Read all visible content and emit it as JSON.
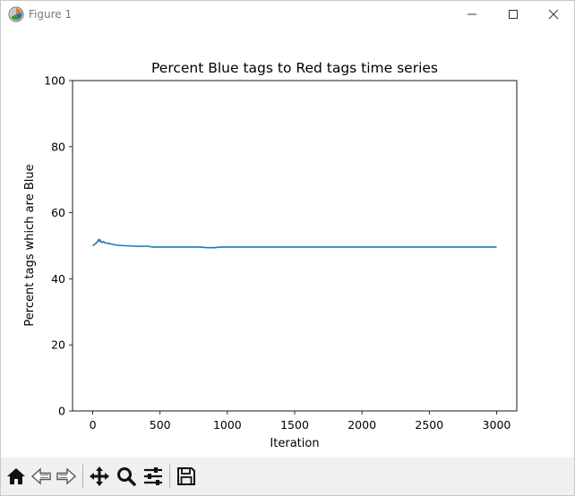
{
  "window": {
    "title": "Figure 1",
    "icons": {
      "app": "matplotlib-figure-icon",
      "minimize": "minimize-icon",
      "maximize": "maximize-icon",
      "close": "close-icon"
    }
  },
  "toolbar": {
    "buttons": [
      {
        "name": "home-button",
        "icon": "home-icon"
      },
      {
        "name": "back-button",
        "icon": "arrow-left-icon"
      },
      {
        "name": "forward-button",
        "icon": "arrow-right-icon"
      },
      {
        "name": "pan-button",
        "icon": "move-icon"
      },
      {
        "name": "zoom-button",
        "icon": "magnifier-icon"
      },
      {
        "name": "configure-subplots-button",
        "icon": "sliders-icon"
      },
      {
        "name": "save-button",
        "icon": "floppy-disk-icon"
      }
    ]
  },
  "chart_data": {
    "type": "line",
    "title": "Percent Blue tags to Red tags time series",
    "xlabel": "Iteration",
    "ylabel": "Percent tags which are Blue",
    "xlim": [
      -150,
      3150
    ],
    "ylim": [
      0,
      100
    ],
    "xticks": [
      0,
      500,
      1000,
      1500,
      2000,
      2500,
      3000
    ],
    "yticks": [
      0,
      20,
      40,
      60,
      80,
      100
    ],
    "grid": false,
    "line_color": "#1f77b4",
    "series": [
      {
        "x": [
          0,
          10,
          20,
          30,
          40,
          45,
          50,
          55,
          60,
          70,
          80,
          90,
          100,
          120,
          150,
          180,
          200,
          250,
          300,
          350,
          400,
          450,
          500,
          600,
          700,
          800,
          850,
          900,
          950,
          1000,
          1200,
          1500,
          2000,
          2500,
          3000
        ],
        "y": [
          50.0,
          50.3,
          50.6,
          51.0,
          51.5,
          51.9,
          51.4,
          51.8,
          51.2,
          51.0,
          51.3,
          50.9,
          50.8,
          50.7,
          50.4,
          50.2,
          50.1,
          50.0,
          49.9,
          49.8,
          49.9,
          49.6,
          49.6,
          49.6,
          49.6,
          49.6,
          49.4,
          49.4,
          49.6,
          49.6,
          49.6,
          49.6,
          49.6,
          49.6,
          49.6
        ]
      }
    ]
  }
}
